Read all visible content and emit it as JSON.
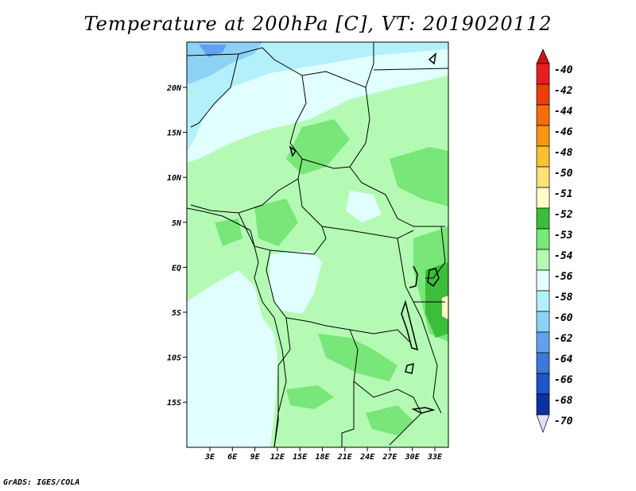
{
  "title": "Temperature at 200hPa [C], VT: 2019020112",
  "credit": "GrADS: IGES/COLA",
  "map": {
    "lat_labels": [
      "20N",
      "15N",
      "10N",
      "5N",
      "EQ",
      "5S",
      "10S",
      "15S"
    ],
    "lon_labels": [
      "3E",
      "6E",
      "9E",
      "12E",
      "15E",
      "18E",
      "21E",
      "24E",
      "27E",
      "30E",
      "33E"
    ]
  },
  "legend": {
    "labels": [
      "-40",
      "-42",
      "-44",
      "-46",
      "-48",
      "-50",
      "-51",
      "-52",
      "-53",
      "-54",
      "-56",
      "-58",
      "-60",
      "-62",
      "-64",
      "-66",
      "-68",
      "-70"
    ],
    "colors": [
      "#e81e1e",
      "#f03c0a",
      "#f56e0a",
      "#fa9614",
      "#fcc032",
      "#fde17a",
      "#fdfdc8",
      "#3cbe3c",
      "#78e678",
      "#b4fab4",
      "#e1ffff",
      "#b4f0fa",
      "#8cd2f5",
      "#64a0eb",
      "#3c78dc",
      "#1e55c8",
      "#0a32a0",
      "#0a0a78"
    ],
    "top_arrow_color": "#c81414",
    "bottom_arrow_color": "#e6dcf5"
  }
}
